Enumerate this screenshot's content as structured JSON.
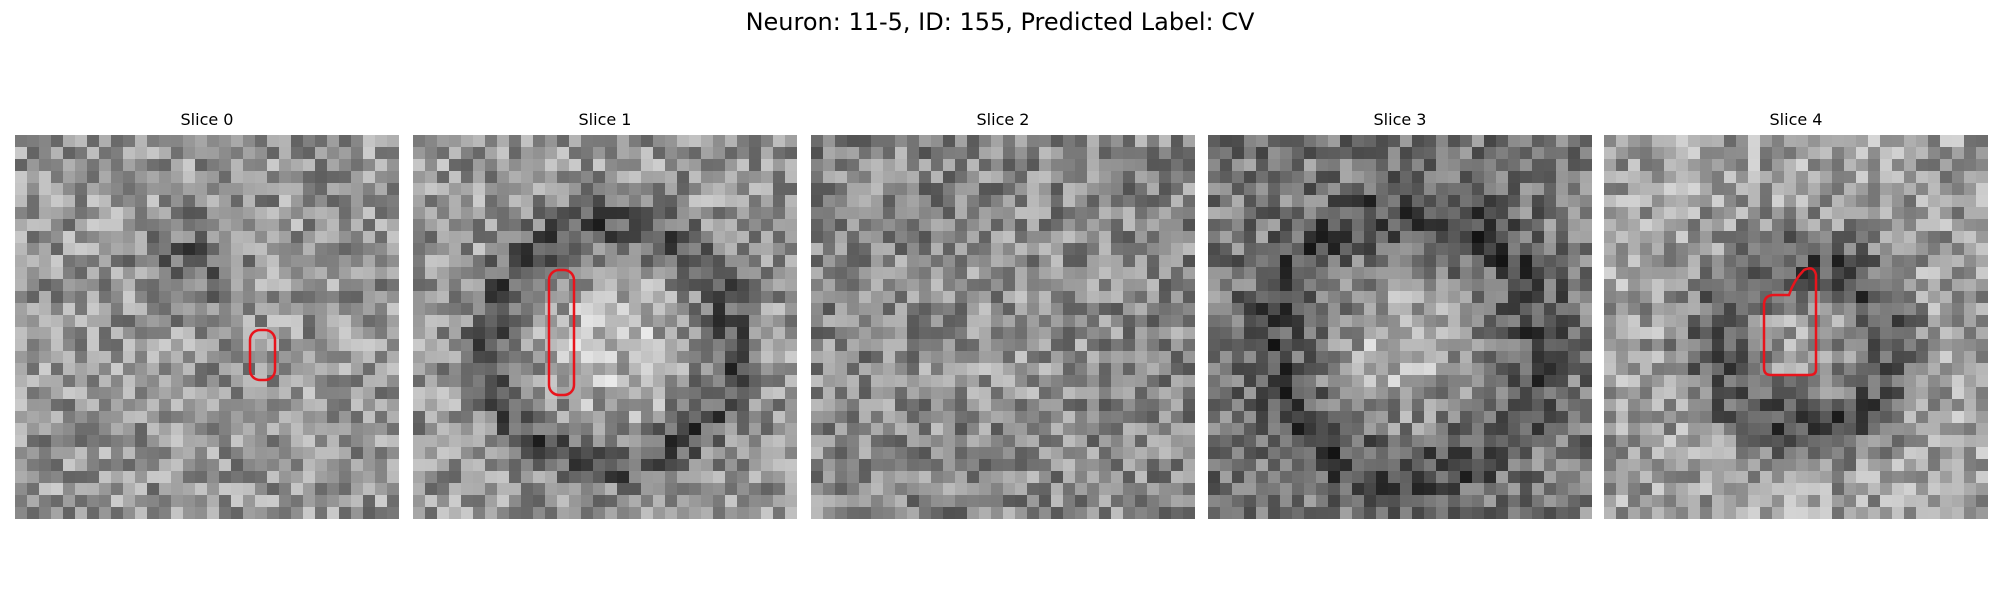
{
  "figure": {
    "title": "Neuron: 11-5, ID: 155, Predicted Label: CV",
    "outline_color": "#e8141c",
    "panels": [
      {
        "title": "Slice 0",
        "seed": 11,
        "pattern": "blob"
      },
      {
        "title": "Slice 1",
        "seed": 23,
        "pattern": "ring"
      },
      {
        "title": "Slice 2",
        "seed": 37,
        "pattern": "noisy"
      },
      {
        "title": "Slice 3",
        "seed": 53,
        "pattern": "bright-center"
      },
      {
        "title": "Slice 4",
        "seed": 71,
        "pattern": "dark-ring"
      }
    ]
  }
}
